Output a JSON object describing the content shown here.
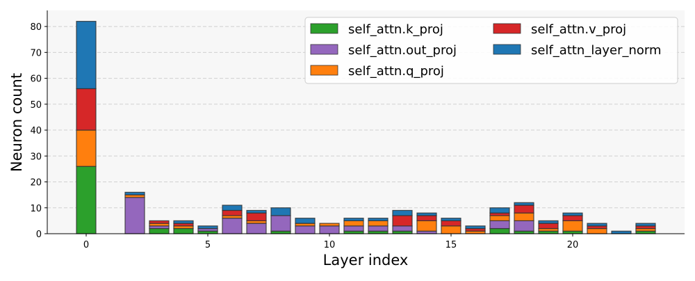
{
  "chart_data": {
    "type": "bar",
    "stacked": true,
    "xlabel": "Layer index",
    "ylabel": "Neuron count",
    "xlim": [
      -1.6,
      24.6
    ],
    "ylim": [
      0,
      86.2
    ],
    "xticks": [
      0,
      5,
      10,
      15,
      20
    ],
    "yticks": [
      0,
      10,
      20,
      30,
      40,
      50,
      60,
      70,
      80
    ],
    "grid": "y-dashed",
    "legend_placement": "top-right",
    "x": [
      0,
      1,
      2,
      3,
      4,
      5,
      6,
      7,
      8,
      9,
      10,
      11,
      12,
      13,
      14,
      15,
      16,
      17,
      18,
      19,
      20,
      21,
      22,
      23
    ],
    "series": [
      {
        "name": "self_attn.k_proj",
        "color": "#2ca02c",
        "values": [
          26,
          0,
          0,
          2,
          2,
          1,
          0,
          0,
          1,
          0,
          0,
          1,
          1,
          1,
          0,
          0,
          0,
          2,
          1,
          1,
          1,
          0,
          0,
          1
        ]
      },
      {
        "name": "self_attn.out_proj",
        "color": "#9467bd",
        "values": [
          0,
          0,
          14,
          1,
          0,
          1,
          6,
          4,
          6,
          3,
          3,
          2,
          2,
          2,
          1,
          0,
          0,
          3,
          4,
          0,
          0,
          0,
          0,
          0
        ]
      },
      {
        "name": "self_attn.q_proj",
        "color": "#ff7f0e",
        "values": [
          14,
          0,
          1,
          1,
          1,
          0,
          1,
          1,
          0,
          1,
          1,
          2,
          2,
          0,
          4,
          3,
          1,
          2,
          3,
          1,
          4,
          2,
          0,
          1
        ]
      },
      {
        "name": "self_attn.v_proj",
        "color": "#d62728",
        "values": [
          16,
          0,
          0,
          1,
          1,
          0,
          2,
          3,
          0,
          0,
          0,
          0,
          0,
          4,
          2,
          2,
          1,
          1,
          3,
          2,
          2,
          1,
          0,
          1
        ]
      },
      {
        "name": "self_attn_layer_norm",
        "color": "#1f77b4",
        "values": [
          26,
          0,
          1,
          0,
          1,
          1,
          2,
          1,
          3,
          2,
          0,
          1,
          1,
          2,
          1,
          1,
          1,
          2,
          1,
          1,
          1,
          1,
          1,
          1
        ]
      }
    ],
    "legend_order": [
      0,
      3,
      1,
      4,
      2
    ]
  }
}
